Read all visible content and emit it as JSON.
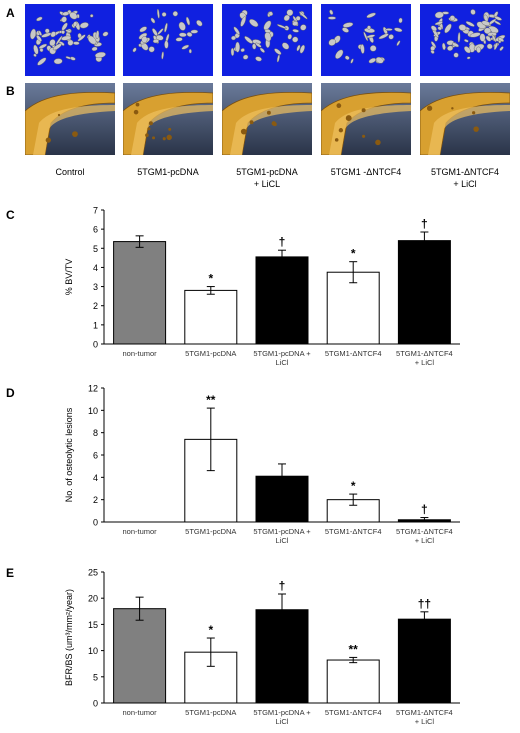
{
  "panel_labels": [
    "A",
    "B",
    "C",
    "D",
    "E"
  ],
  "groups": [
    {
      "line1": "Control",
      "line2": ""
    },
    {
      "line1": "5TGM1-pcDNA",
      "line2": ""
    },
    {
      "line1": "5TGM1-pcDNA",
      "line2": "+ LiCL"
    },
    {
      "line1": "5TGM1 -ΔNTCF4",
      "line2": ""
    },
    {
      "line1": "5TGM1-ΔNTCF4",
      "line2": "+ LiCl"
    }
  ],
  "colors": {
    "tumor_free": "#808080",
    "control_vector": "#ffffff",
    "treated": "#000000",
    "microct_background": "#1020e0",
    "trabecular_bone": "#c8c8c8",
    "cortical_bone": "#d8a030"
  },
  "chart_data": [
    {
      "type": "bar",
      "ylabel": "% BV/TV",
      "ylim": [
        0,
        7
      ],
      "yticks": [
        0,
        1,
        2,
        3,
        4,
        5,
        6,
        7
      ],
      "categories": [
        {
          "line1": "non-tumor",
          "line2": ""
        },
        {
          "line1": "5TGM1-pcDNA",
          "line2": ""
        },
        {
          "line1": "5TGM1-pcDNA +",
          "line2": "LiCl"
        },
        {
          "line1": "5TGM1-ΔNTCF4",
          "line2": ""
        },
        {
          "line1": "5TGM1-ΔNTCF4",
          "line2": "+ LiCl"
        }
      ],
      "values": [
        5.35,
        2.8,
        4.55,
        3.75,
        5.4
      ],
      "errors": [
        0.3,
        0.2,
        0.35,
        0.55,
        0.45
      ],
      "significance": [
        "",
        "*",
        "†",
        "*",
        "†"
      ],
      "bar_colors": [
        "#808080",
        "#ffffff",
        "#000000",
        "#ffffff",
        "#000000"
      ]
    },
    {
      "type": "bar",
      "ylabel": "No. of osteolytic lesions",
      "ylim": [
        0,
        12
      ],
      "yticks": [
        0,
        2,
        4,
        6,
        8,
        10,
        12
      ],
      "categories": [
        {
          "line1": "non-tumor",
          "line2": ""
        },
        {
          "line1": "5TGM1-pcDNA",
          "line2": ""
        },
        {
          "line1": "5TGM1-pcDNA +",
          "line2": "LiCl"
        },
        {
          "line1": "5TGM1-ΔNTCF4",
          "line2": ""
        },
        {
          "line1": "5TGM1-ΔNTCF4",
          "line2": "+ LiCl"
        }
      ],
      "values": [
        0,
        7.4,
        4.1,
        2.0,
        0.2
      ],
      "errors": [
        0,
        2.8,
        1.1,
        0.5,
        0.2
      ],
      "significance": [
        "",
        "**",
        "",
        "*",
        "†"
      ],
      "bar_colors": [
        "#808080",
        "#ffffff",
        "#000000",
        "#ffffff",
        "#000000"
      ]
    },
    {
      "type": "bar",
      "ylabel": "BFR/BS (um³/mm²/year)",
      "ylim": [
        0,
        25
      ],
      "yticks": [
        0,
        5,
        10,
        15,
        20,
        25
      ],
      "categories": [
        {
          "line1": "non-tumor",
          "line2": ""
        },
        {
          "line1": "5TGM1-pcDNA",
          "line2": ""
        },
        {
          "line1": "5TGM1-pcDNA +",
          "line2": "LiCl"
        },
        {
          "line1": "5TGM1-ΔNTCF4",
          "line2": ""
        },
        {
          "line1": "5TGM1-ΔNTCF4",
          "line2": "+ LiCl"
        }
      ],
      "values": [
        18.0,
        9.7,
        17.8,
        8.2,
        16.0
      ],
      "errors": [
        2.2,
        2.7,
        3.0,
        0.5,
        1.4
      ],
      "significance": [
        "",
        "*",
        "†",
        "**",
        "††"
      ],
      "bar_colors": [
        "#808080",
        "#ffffff",
        "#000000",
        "#ffffff",
        "#000000"
      ]
    }
  ]
}
